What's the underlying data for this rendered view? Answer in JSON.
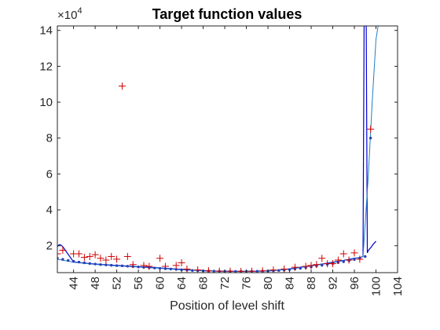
{
  "chart_data": {
    "type": "line",
    "title": "Target function values",
    "xlabel": "Position of level shift",
    "ylabel": "",
    "y_multiplier_label": "×10",
    "y_multiplier_exponent": "4",
    "xlim": [
      41,
      104
    ],
    "ylim": [
      5000,
      142500
    ],
    "x_tick_values": [
      44,
      48,
      52,
      56,
      60,
      64,
      68,
      72,
      76,
      80,
      84,
      88,
      92,
      96,
      100,
      104
    ],
    "x_tick_labels": [
      "44",
      "48",
      "52",
      "56",
      "60",
      "64",
      "68",
      "72",
      "76",
      "80",
      "84",
      "88",
      "92",
      "96",
      "100",
      "104"
    ],
    "y_tick_values": [
      20000,
      40000,
      60000,
      80000,
      100000,
      120000,
      140000
    ],
    "y_tick_labels": [
      "2",
      "4",
      "6",
      "8",
      "10",
      "12",
      "14"
    ],
    "grid": false,
    "legend": "none",
    "colors": {
      "dark_line": "#0000cc",
      "light_line": "#1f7fc8",
      "dots": "#2b3fb5",
      "plus": "#d00000",
      "axes": "#262626"
    },
    "series": [
      {
        "kind": "line-dark",
        "x": [
          41,
          41.3,
          41.6,
          42,
          44,
          46,
          48,
          50,
          52,
          54,
          56,
          58,
          60,
          62,
          64,
          66,
          68,
          70,
          72,
          74,
          76,
          78,
          80,
          82,
          84,
          86,
          88,
          90,
          92,
          94,
          96,
          97,
          97.6,
          97.8,
          98,
          98.2,
          98.4,
          98.6,
          98.9,
          99.2,
          99.4,
          99.7,
          100
        ],
        "y": [
          19500,
          20500,
          20500,
          19500,
          11000,
          10300,
          9800,
          9400,
          9000,
          8700,
          8300,
          8000,
          7600,
          7200,
          6800,
          6400,
          6100,
          5900,
          5800,
          5750,
          5750,
          5800,
          6000,
          6400,
          7100,
          8000,
          8900,
          9800,
          10800,
          11800,
          13000,
          13400,
          14000,
          142500,
          142500,
          142500,
          16000,
          17500,
          18500,
          19500,
          20500,
          21500,
          22500
        ]
      },
      {
        "kind": "line-light",
        "x": [
          41,
          44,
          48,
          52,
          56,
          60,
          64,
          68,
          72,
          76,
          80,
          84,
          88,
          92,
          96,
          97.6,
          98.6,
          99.3,
          100,
          100.4
        ],
        "y": [
          12500,
          10800,
          9600,
          8800,
          8100,
          7400,
          6600,
          6000,
          5700,
          5700,
          5900,
          6900,
          8700,
          10600,
          12800,
          14000,
          60000,
          100000,
          135000,
          142500
        ]
      },
      {
        "kind": "dots",
        "x": [
          41,
          42,
          43,
          44,
          45,
          46,
          47,
          48,
          49,
          50,
          51,
          52,
          53,
          54,
          55,
          56,
          57,
          58,
          59,
          60,
          61,
          62,
          63,
          64,
          65,
          66,
          67,
          68,
          69,
          70,
          71,
          72,
          73,
          74,
          75,
          76,
          77,
          78,
          79,
          80,
          81,
          82,
          83,
          84,
          85,
          86,
          87,
          88,
          89,
          90,
          91,
          92,
          93,
          94,
          95,
          96,
          97,
          98,
          99
        ],
        "y": [
          13000,
          12400,
          11800,
          11300,
          10900,
          10500,
          10100,
          9800,
          9500,
          9300,
          9100,
          8900,
          8800,
          8600,
          8400,
          8200,
          8000,
          7800,
          7600,
          7400,
          7200,
          7000,
          6800,
          6600,
          6400,
          6200,
          6100,
          6000,
          5900,
          5850,
          5800,
          5750,
          5700,
          5700,
          5700,
          5700,
          5750,
          5800,
          5850,
          5950,
          6050,
          6200,
          6400,
          6700,
          7000,
          7400,
          7800,
          8200,
          8700,
          9100,
          9600,
          10100,
          10600,
          11100,
          11700,
          12300,
          13000,
          14000,
          80000
        ]
      },
      {
        "kind": "plus",
        "x": [
          41,
          42,
          44,
          45,
          46,
          47,
          48,
          49,
          50,
          51,
          52,
          53,
          54,
          55,
          57,
          58,
          60,
          61,
          63,
          64,
          65,
          67,
          69,
          71,
          73,
          75,
          77,
          79,
          81,
          83,
          85,
          87,
          88,
          89,
          90,
          91,
          92,
          93,
          94,
          95,
          96,
          97,
          99
        ],
        "y": [
          15500,
          17500,
          15500,
          15500,
          13500,
          14000,
          15000,
          13000,
          12000,
          14000,
          12500,
          109000,
          14000,
          9500,
          9000,
          8500,
          13000,
          8500,
          9000,
          10500,
          7000,
          6500,
          6000,
          5800,
          5800,
          5700,
          5800,
          6000,
          6500,
          7000,
          8000,
          8500,
          9000,
          9500,
          13000,
          10000,
          10000,
          12000,
          15500,
          12000,
          16000,
          12500,
          85000
        ]
      }
    ]
  }
}
